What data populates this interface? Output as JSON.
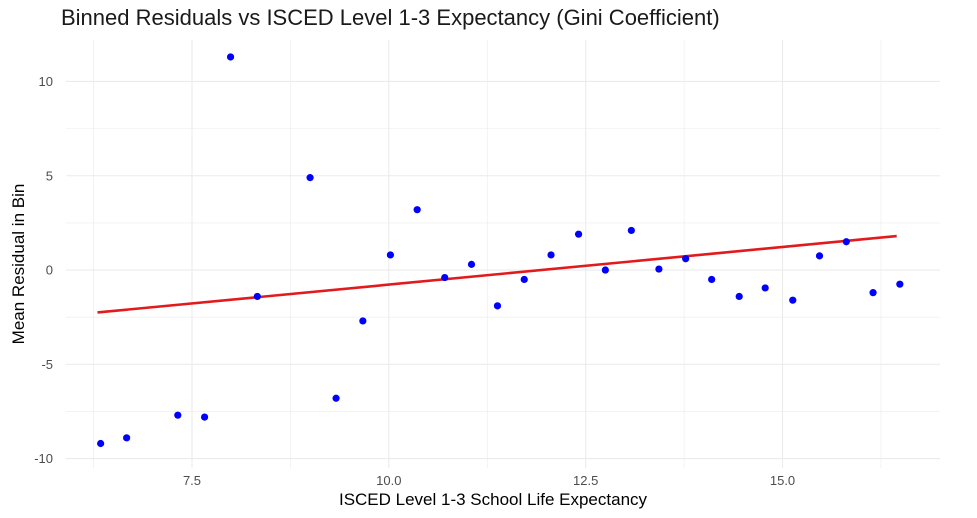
{
  "chart_data": {
    "type": "scatter",
    "title": "Binned Residuals vs ISCED Level 1-3 Expectancy (Gini Coefficient)",
    "xlabel": "ISCED Level 1-3 School Life Expectancy",
    "ylabel": "Mean Residual in Bin",
    "xlim": [
      5.9,
      17.0
    ],
    "ylim": [
      -10.5,
      12.2
    ],
    "x_ticks": [
      7.5,
      10.0,
      12.5,
      15.0
    ],
    "x_tick_labels": [
      "7.5",
      "10.0",
      "12.5",
      "15.0"
    ],
    "y_ticks": [
      -10,
      -5,
      0,
      5,
      10
    ],
    "y_tick_labels": [
      "-10",
      "-5",
      "0",
      "5",
      "10"
    ],
    "grid": true,
    "points": {
      "x": [
        6.34,
        6.67,
        7.32,
        7.66,
        7.99,
        8.33,
        9.0,
        9.33,
        9.67,
        10.02,
        10.36,
        10.71,
        11.05,
        11.38,
        11.72,
        12.06,
        12.41,
        12.75,
        13.08,
        13.43,
        13.77,
        14.1,
        14.45,
        14.78,
        15.13,
        15.47,
        15.81,
        16.15,
        16.49
      ],
      "y": [
        -9.2,
        -8.9,
        -7.7,
        -7.8,
        11.3,
        -1.4,
        4.9,
        -6.8,
        -2.7,
        0.8,
        3.2,
        -0.4,
        0.3,
        -1.9,
        -0.5,
        0.8,
        1.9,
        0.0,
        2.1,
        0.05,
        0.6,
        -0.5,
        -1.4,
        -0.95,
        -1.6,
        0.75,
        1.5,
        -1.2,
        -0.75
      ],
      "color": "#0000ff"
    },
    "trend_line": {
      "x": [
        6.3,
        16.45
      ],
      "y": [
        -2.25,
        1.8
      ],
      "color": "#e31a1c"
    },
    "grid_color": "#ebebeb"
  }
}
